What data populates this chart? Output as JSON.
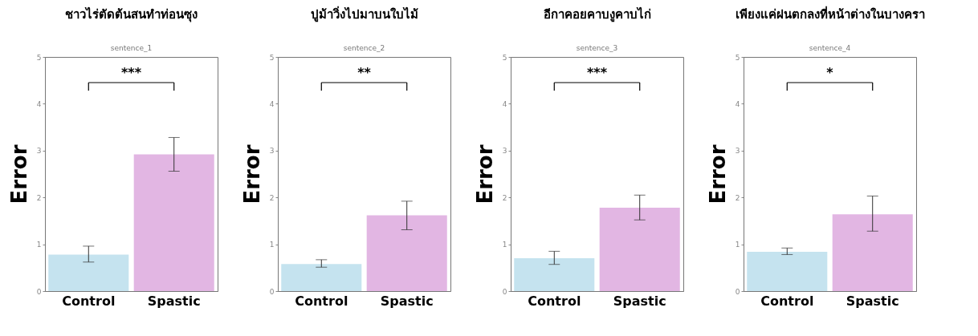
{
  "chart_data": [
    {
      "type": "bar",
      "title": "ชาวไร่ตัดต้นสนทำท่อนซุง",
      "subtitle": "sentence_1",
      "ylabel": "Error",
      "categories": [
        "Control",
        "Spastic"
      ],
      "values": [
        0.78,
        2.92
      ],
      "colors": [
        "#c5e3ef",
        "#e2b6e3"
      ],
      "errors": [
        [
          0.62,
          0.96
        ],
        [
          2.56,
          3.28
        ]
      ],
      "ylim": [
        0,
        5
      ],
      "yticks": [
        0,
        1,
        2,
        3,
        4,
        5
      ],
      "annotations": [
        "***"
      ]
    },
    {
      "type": "bar",
      "title": "ปูม้าวิ่งไปมาบนใบไม้",
      "subtitle": "sentence_2",
      "ylabel": "Error",
      "categories": [
        "Control",
        "Spastic"
      ],
      "values": [
        0.58,
        1.62
      ],
      "colors": [
        "#c5e3ef",
        "#e2b6e3"
      ],
      "errors": [
        [
          0.51,
          0.67
        ],
        [
          1.31,
          1.92
        ]
      ],
      "ylim": [
        0,
        5
      ],
      "yticks": [
        0,
        1,
        2,
        3,
        4,
        5
      ],
      "annotations": [
        "**"
      ]
    },
    {
      "type": "bar",
      "title": "อีกาคอยคาบงูคาบไก่",
      "subtitle": "sentence_3",
      "ylabel": "Error",
      "categories": [
        "Control",
        "Spastic"
      ],
      "values": [
        0.7,
        1.78
      ],
      "colors": [
        "#c5e3ef",
        "#e2b6e3"
      ],
      "errors": [
        [
          0.57,
          0.85
        ],
        [
          1.52,
          2.05
        ]
      ],
      "ylim": [
        0,
        5
      ],
      "yticks": [
        0,
        1,
        2,
        3,
        4,
        5
      ],
      "annotations": [
        "***"
      ]
    },
    {
      "type": "bar",
      "title": "เพียงแค่ฝนตกลงที่หน้าต่างในบางครา",
      "subtitle": "sentence_4",
      "ylabel": "Error",
      "categories": [
        "Control",
        "Spastic"
      ],
      "values": [
        0.84,
        1.64
      ],
      "colors": [
        "#c5e3ef",
        "#e2b6e3"
      ],
      "errors": [
        [
          0.78,
          0.92
        ],
        [
          1.28,
          2.03
        ]
      ],
      "ylim": [
        0,
        5
      ],
      "yticks": [
        0,
        1,
        2,
        3,
        4,
        5
      ],
      "annotations": [
        "*"
      ]
    }
  ]
}
